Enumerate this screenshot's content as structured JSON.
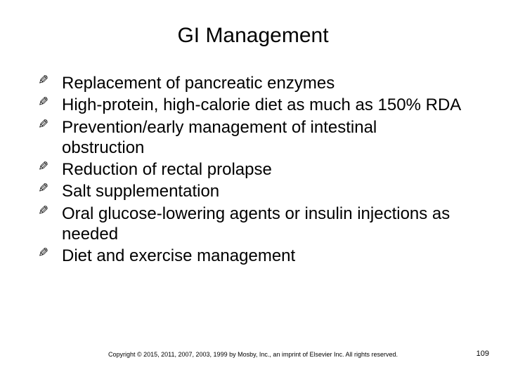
{
  "title": "GI Management",
  "bullets": [
    "Replacement of pancreatic enzymes",
    "High-protein, high-calorie diet as much as 150% RDA",
    "Prevention/early management of intestinal obstruction",
    "Reduction of rectal prolapse",
    "Salt supplementation",
    "Oral glucose-lowering agents or insulin injections as needed",
    "Diet and exercise management"
  ],
  "copyright": "Copyright © 2015, 2011, 2007, 2003, 1999 by Mosby, Inc., an imprint of Elsevier Inc. All rights reserved.",
  "page_number": "109",
  "colors": {
    "background": "#ffffff",
    "text": "#000000"
  },
  "typography": {
    "title_fontsize": 30,
    "body_fontsize": 24,
    "footer_fontsize": 9,
    "pagenum_fontsize": 11,
    "font_family": "Arial"
  }
}
